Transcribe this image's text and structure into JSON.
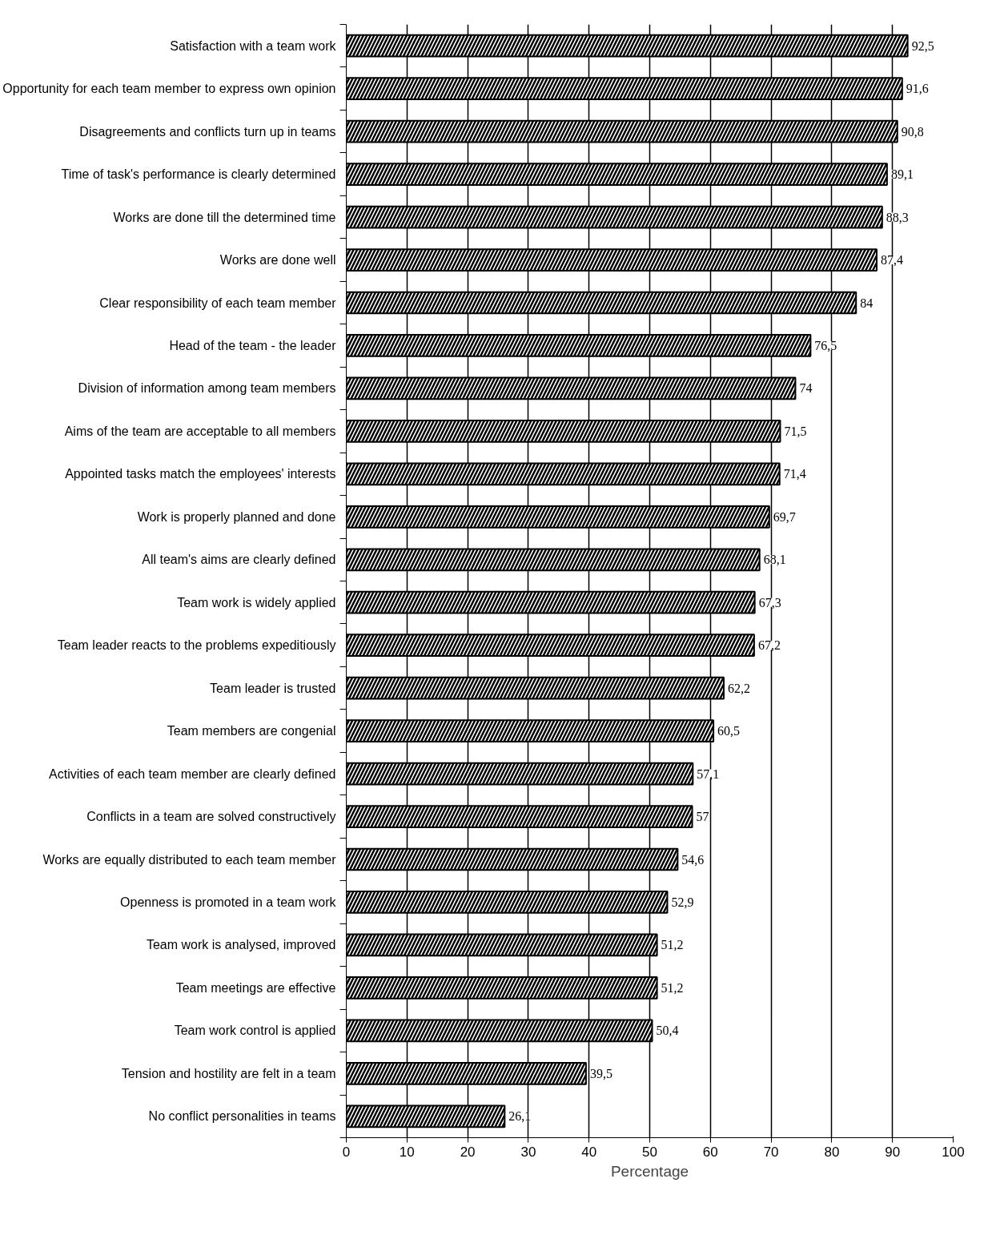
{
  "chart_data": {
    "type": "bar",
    "orientation": "horizontal",
    "xlabel": "Percentage",
    "categories": [
      "Satisfaction with a team work",
      "Opportunity for each team member to express own opinion",
      "Disagreements and conflicts turn up in teams",
      "Time of task's performance is clearly determined",
      "Works are done till the determined time",
      "Works are done well",
      "Clear responsibility of each team member",
      "Head of the team - the leader",
      "Division of information among team members",
      "Aims of the team are acceptable to all members",
      "Appointed tasks match the employees' interests",
      "Work is properly planned and done",
      "All team's aims are clearly defined",
      "Team work is widely applied",
      "Team leader reacts to the problems expeditiously",
      "Team leader is trusted",
      "Team members are congenial",
      "Activities of each team member are clearly defined",
      "Conflicts in a team are solved constructively",
      "Works are equally distributed to each team member",
      "Openness is promoted in a team work",
      "Team work is analysed, improved",
      "Team meetings are effective",
      "Team work control is applied",
      "Tension and hostility are felt in a team",
      "No conflict personalities in teams"
    ],
    "values": [
      92.5,
      91.6,
      90.8,
      89.1,
      88.3,
      87.4,
      84,
      76.5,
      74,
      71.5,
      71.4,
      69.7,
      68.1,
      67.3,
      67.2,
      62.2,
      60.5,
      57.1,
      57,
      54.6,
      52.9,
      51.2,
      51.2,
      50.4,
      39.5,
      26.1
    ],
    "value_labels": [
      "92,5",
      "91,6",
      "90,8",
      "89,1",
      "88,3",
      "87,4",
      "84",
      "76,5",
      "74",
      "71,5",
      "71,4",
      "69,7",
      "68,1",
      "67,3",
      "67,2",
      "62,2",
      "60,5",
      "57,1",
      "57",
      "54,6",
      "52,9",
      "51,2",
      "51,2",
      "50,4",
      "39,5",
      "26,1"
    ],
    "color": "#000000",
    "xlim": [
      0,
      100
    ],
    "xticks": [
      0,
      10,
      20,
      30,
      40,
      50,
      60,
      70,
      80,
      90,
      100
    ],
    "grid": "x"
  }
}
